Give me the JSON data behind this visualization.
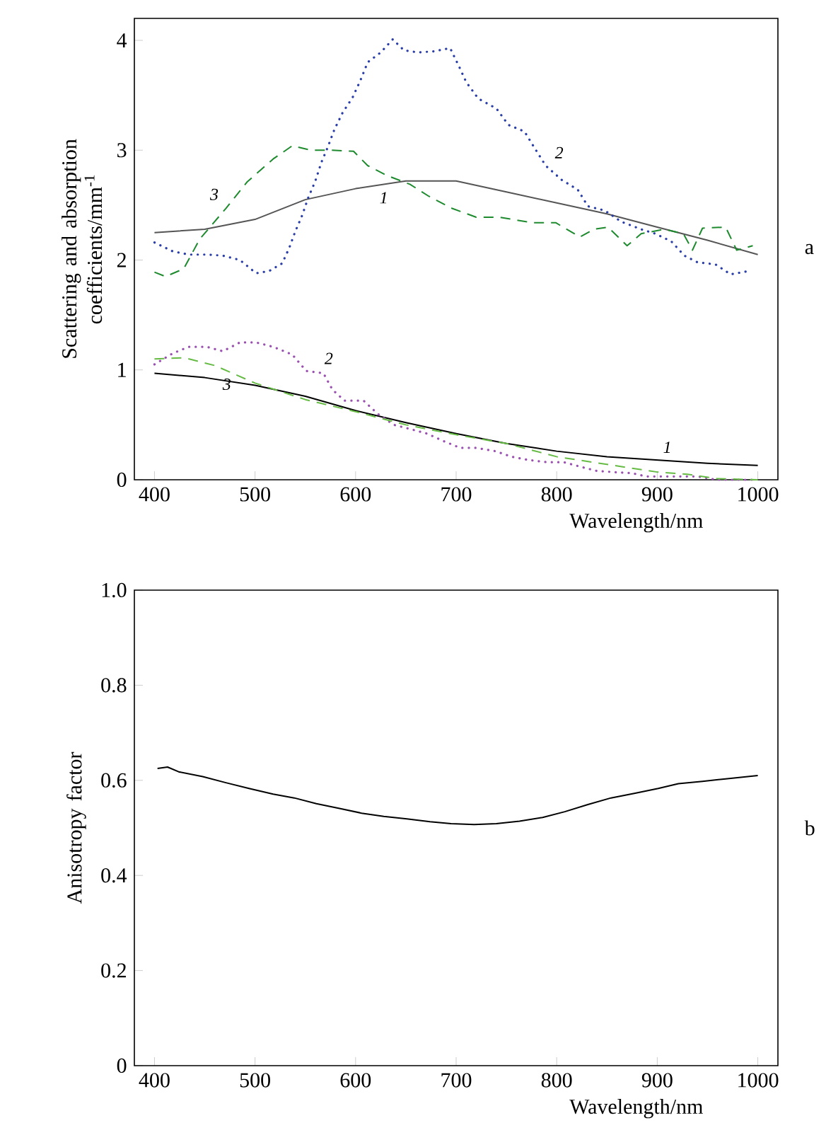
{
  "chart_data": [
    {
      "type": "line",
      "ylabel": "Scattering and absorption coefficients/mm$^{-1}$",
      "xlabel": "Wavelength/nm",
      "xlim": [
        380,
        1020
      ],
      "ylim": [
        0,
        4.2
      ],
      "xticks": [
        400,
        500,
        600,
        700,
        800,
        900,
        1000
      ],
      "yticks": [
        0,
        1,
        2,
        3,
        4
      ],
      "series": [
        {
          "name": "1",
          "color": "#555555",
          "line_style": "solid",
          "x": [
            400,
            450,
            500,
            550,
            600,
            650,
            700,
            750,
            800,
            850,
            900,
            950,
            1000
          ],
          "values": [
            2.25,
            2.28,
            2.37,
            2.55,
            2.65,
            2.72,
            2.72,
            2.62,
            2.52,
            2.42,
            2.3,
            2.18,
            2.05
          ]
        },
        {
          "name": "2",
          "color": "#2a3ea8",
          "line_style": "dotted",
          "x": [
            400,
            418,
            434,
            452,
            468,
            485,
            501,
            514,
            527,
            534,
            540,
            547,
            553,
            560,
            566,
            572,
            579,
            587,
            597,
            605,
            612,
            625,
            637,
            648,
            662,
            678,
            694,
            703,
            710,
            722,
            740,
            752,
            768,
            778,
            789,
            805,
            821,
            831,
            848,
            864,
            884,
            898,
            914,
            927,
            940,
            958,
            973,
            991
          ],
          "values": [
            2.16,
            2.08,
            2.05,
            2.05,
            2.04,
            2.0,
            1.88,
            1.9,
            1.97,
            2.11,
            2.26,
            2.41,
            2.57,
            2.72,
            2.89,
            3.02,
            3.19,
            3.34,
            3.48,
            3.64,
            3.8,
            3.89,
            4.01,
            3.91,
            3.89,
            3.9,
            3.93,
            3.76,
            3.62,
            3.47,
            3.38,
            3.23,
            3.17,
            3.02,
            2.86,
            2.73,
            2.64,
            2.49,
            2.45,
            2.35,
            2.28,
            2.24,
            2.17,
            2.04,
            1.98,
            1.96,
            1.87,
            1.9
          ]
        },
        {
          "name": "3",
          "color": "#1e8a2e",
          "line_style": "dashed",
          "x": [
            400,
            411,
            429,
            445,
            471,
            492,
            518,
            537,
            556,
            575,
            598,
            612,
            631,
            654,
            673,
            696,
            720,
            743,
            776,
            799,
            823,
            837,
            851,
            870,
            884,
            907,
            926,
            935,
            945,
            968,
            979,
            995
          ],
          "values": [
            1.89,
            1.85,
            1.92,
            2.19,
            2.47,
            2.71,
            2.92,
            3.04,
            3.0,
            3.0,
            2.99,
            2.86,
            2.77,
            2.69,
            2.58,
            2.47,
            2.39,
            2.39,
            2.34,
            2.34,
            2.21,
            2.28,
            2.3,
            2.13,
            2.24,
            2.28,
            2.24,
            2.09,
            2.29,
            2.3,
            2.09,
            2.13
          ]
        },
        {
          "name": "1",
          "color": "#000000",
          "line_style": "solid",
          "x": [
            400,
            450,
            500,
            550,
            600,
            650,
            700,
            750,
            800,
            850,
            900,
            950,
            1000
          ],
          "values": [
            0.97,
            0.93,
            0.86,
            0.76,
            0.63,
            0.52,
            0.42,
            0.33,
            0.26,
            0.21,
            0.18,
            0.15,
            0.13
          ]
        },
        {
          "name": "2",
          "color": "#9a50b0",
          "line_style": "dotted",
          "x": [
            400,
            418,
            434,
            452,
            468,
            485,
            501,
            518,
            537,
            551,
            568,
            577,
            589,
            608,
            622,
            638,
            655,
            671,
            688,
            704,
            720,
            739,
            755,
            772,
            790,
            807,
            823,
            840,
            856,
            875,
            889,
            907,
            924,
            940,
            959,
            977,
            996
          ],
          "values": [
            1.05,
            1.15,
            1.21,
            1.21,
            1.17,
            1.25,
            1.25,
            1.21,
            1.14,
            0.99,
            0.97,
            0.82,
            0.72,
            0.72,
            0.6,
            0.5,
            0.46,
            0.42,
            0.35,
            0.29,
            0.29,
            0.26,
            0.21,
            0.18,
            0.16,
            0.16,
            0.12,
            0.08,
            0.07,
            0.06,
            0.03,
            0.03,
            0.03,
            0.03,
            0.0,
            0.0,
            0.0
          ]
        },
        {
          "name": "3",
          "color": "#66bb44",
          "line_style": "dashed",
          "x": [
            400,
            430,
            460,
            480,
            500,
            550,
            600,
            650,
            700,
            750,
            800,
            850,
            900,
            930,
            960,
            1000
          ],
          "values": [
            1.1,
            1.11,
            1.04,
            0.96,
            0.88,
            0.73,
            0.62,
            0.5,
            0.41,
            0.33,
            0.21,
            0.14,
            0.07,
            0.05,
            0.01,
            0.0
          ]
        }
      ],
      "annotations": [
        "a"
      ]
    },
    {
      "type": "line",
      "ylabel": "Anisotropy factor",
      "xlabel": "Wavelength/nm",
      "xlim": [
        380,
        1020
      ],
      "ylim": [
        0,
        1
      ],
      "xticks": [
        400,
        500,
        600,
        700,
        800,
        900,
        1000
      ],
      "yticks": [
        0,
        0.2,
        0.4,
        0.6,
        0.8,
        {
          "value": 1,
          "label": "1.0"
        }
      ],
      "series": [
        {
          "color": "#000000",
          "line_style": "solid",
          "x": [
            403,
            413,
            424,
            448,
            471,
            494,
            518,
            539,
            561,
            584,
            606,
            628,
            651,
            674,
            695,
            718,
            740,
            763,
            786,
            808,
            831,
            854,
            878,
            901,
            921,
            945,
            968,
            1000
          ],
          "values": [
            0.625,
            0.628,
            0.618,
            0.608,
            0.595,
            0.583,
            0.571,
            0.563,
            0.551,
            0.541,
            0.531,
            0.524,
            0.519,
            0.513,
            0.509,
            0.507,
            0.509,
            0.514,
            0.522,
            0.534,
            0.549,
            0.563,
            0.573,
            0.583,
            0.593,
            0.598,
            0.603,
            0.61
          ]
        }
      ],
      "annotations": [
        "b"
      ]
    }
  ]
}
